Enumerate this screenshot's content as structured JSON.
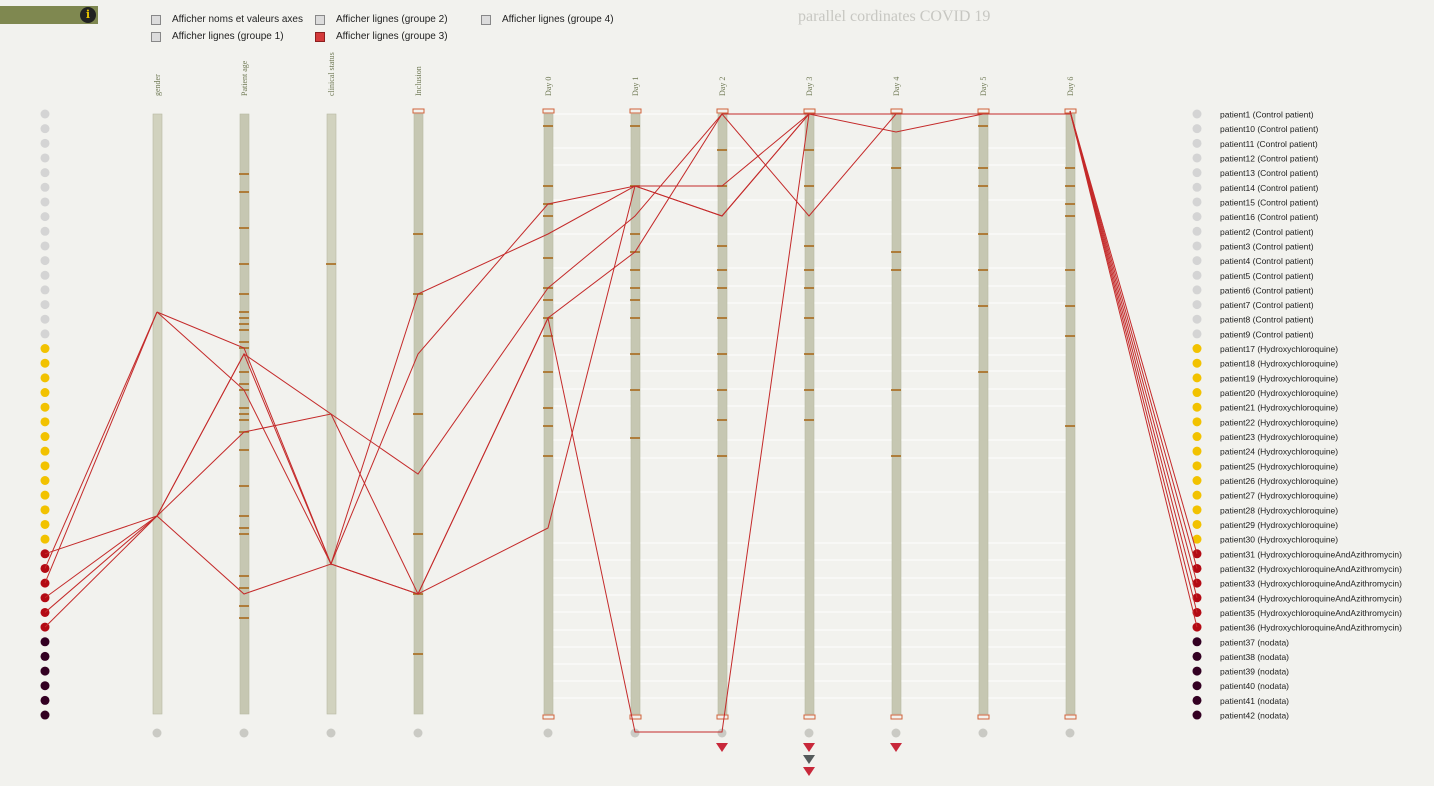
{
  "toolbar": {
    "info_label": "i"
  },
  "controls": [
    {
      "label": "Afficher noms et valeurs axes",
      "checked": false
    },
    {
      "label": "Afficher lignes (groupe 1)",
      "checked": false
    },
    {
      "label": "Afficher lignes (groupe 2)",
      "checked": false
    },
    {
      "label": "Afficher lignes (groupe 3)",
      "checked": true
    },
    {
      "label": "Afficher lignes (groupe 4)",
      "checked": false
    }
  ],
  "colors": {
    "control": "#d4d4d4",
    "hydroxy": "#f2c200",
    "azithro": "#b30a14",
    "nodata": "#330022",
    "line": "#c42a2a",
    "axis": "#c6c7b2",
    "tick": "#a86a1c",
    "warning": "#c8283a",
    "grey_marker": "#555b5b"
  },
  "chart_data": {
    "type": "parallel_coordinates",
    "title": "parallel cordinates COVID 19",
    "axes": [
      "gender",
      "Patient age",
      "clinical status",
      "Inclusion",
      "Day 0",
      "Day 1",
      "Day 2",
      "Day 3",
      "Day 4",
      "Day 5",
      "Day 6"
    ],
    "axis_tick_positions": [
      [],
      [
        0.1,
        0.13,
        0.19,
        0.25,
        0.3,
        0.33,
        0.34,
        0.35,
        0.36,
        0.38,
        0.39,
        0.43,
        0.45,
        0.46,
        0.49,
        0.5,
        0.51,
        0.53,
        0.56,
        0.62,
        0.67,
        0.69,
        0.7,
        0.77,
        0.79,
        0.82,
        0.84
      ],
      [
        0.25
      ],
      [
        0.2,
        0.3,
        0.5,
        0.7,
        0.8,
        0.9
      ],
      [
        0.02,
        0.12,
        0.15,
        0.17,
        0.24,
        0.29,
        0.31,
        0.34,
        0.37,
        0.43,
        0.49,
        0.52,
        0.57
      ],
      [
        0.02,
        0.12,
        0.2,
        0.23,
        0.26,
        0.29,
        0.31,
        0.34,
        0.4,
        0.46,
        0.54
      ],
      [
        0.06,
        0.12,
        0.22,
        0.26,
        0.29,
        0.34,
        0.4,
        0.46,
        0.51,
        0.57
      ],
      [
        0.06,
        0.12,
        0.22,
        0.26,
        0.29,
        0.34,
        0.4,
        0.46,
        0.51
      ],
      [
        0.09,
        0.23,
        0.26,
        0.46,
        0.57
      ],
      [
        0.02,
        0.09,
        0.12,
        0.2,
        0.26,
        0.32,
        0.43
      ],
      [
        0.09,
        0.12,
        0.15,
        0.17,
        0.26,
        0.32,
        0.37,
        0.52
      ]
    ],
    "lines": [
      [
        0.67,
        0.8,
        0.75,
        0.8,
        0.34,
        0.23,
        0.0,
        0.0,
        0.0,
        0.0,
        0.0
      ],
      [
        0.33,
        0.46,
        0.75,
        0.8,
        0.69,
        0.12,
        0.12,
        0.0,
        0.03,
        0.0,
        0.0
      ],
      [
        0.33,
        0.39,
        0.75,
        0.4,
        0.15,
        0.12,
        0.17,
        0.0,
        0.0,
        0.0,
        0.0
      ],
      [
        0.67,
        0.53,
        0.5,
        0.6,
        0.29,
        0.17,
        0.0,
        0.17,
        0.0,
        0.0,
        0.0
      ],
      [
        0.67,
        0.4,
        0.75,
        0.3,
        0.2,
        0.12,
        0.17,
        0.0,
        0.0,
        0.0,
        0.0
      ],
      [
        0.67,
        0.4,
        0.5,
        0.8,
        0.34,
        1.03,
        1.03,
        0.0,
        0.0,
        0.0,
        0.0
      ]
    ],
    "patients": [
      {
        "label": "patient1 (Control patient)",
        "group": "control"
      },
      {
        "label": "patient10 (Control patient)",
        "group": "control"
      },
      {
        "label": "patient11 (Control patient)",
        "group": "control"
      },
      {
        "label": "patient12 (Control patient)",
        "group": "control"
      },
      {
        "label": "patient13 (Control patient)",
        "group": "control"
      },
      {
        "label": "patient14 (Control patient)",
        "group": "control"
      },
      {
        "label": "patient15 (Control patient)",
        "group": "control"
      },
      {
        "label": "patient16 (Control patient)",
        "group": "control"
      },
      {
        "label": "patient2 (Control patient)",
        "group": "control"
      },
      {
        "label": "patient3 (Control patient)",
        "group": "control"
      },
      {
        "label": "patient4 (Control patient)",
        "group": "control"
      },
      {
        "label": "patient5 (Control patient)",
        "group": "control"
      },
      {
        "label": "patient6 (Control patient)",
        "group": "control"
      },
      {
        "label": "patient7 (Control patient)",
        "group": "control"
      },
      {
        "label": "patient8 (Control patient)",
        "group": "control"
      },
      {
        "label": "patient9 (Control patient)",
        "group": "control"
      },
      {
        "label": "patient17 (Hydroxychloroquine)",
        "group": "hydroxy"
      },
      {
        "label": "patient18 (Hydroxychloroquine)",
        "group": "hydroxy"
      },
      {
        "label": "patient19 (Hydroxychloroquine)",
        "group": "hydroxy"
      },
      {
        "label": "patient20 (Hydroxychloroquine)",
        "group": "hydroxy"
      },
      {
        "label": "patient21 (Hydroxychloroquine)",
        "group": "hydroxy"
      },
      {
        "label": "patient22 (Hydroxychloroquine)",
        "group": "hydroxy"
      },
      {
        "label": "patient23 (Hydroxychloroquine)",
        "group": "hydroxy"
      },
      {
        "label": "patient24 (Hydroxychloroquine)",
        "group": "hydroxy"
      },
      {
        "label": "patient25 (Hydroxychloroquine)",
        "group": "hydroxy"
      },
      {
        "label": "patient26 (Hydroxychloroquine)",
        "group": "hydroxy"
      },
      {
        "label": "patient27 (Hydroxychloroquine)",
        "group": "hydroxy"
      },
      {
        "label": "patient28 (Hydroxychloroquine)",
        "group": "hydroxy"
      },
      {
        "label": "patient29 (Hydroxychloroquine)",
        "group": "hydroxy"
      },
      {
        "label": "patient30 (Hydroxychloroquine)",
        "group": "hydroxy"
      },
      {
        "label": "patient31 (HydroxychloroquineAndAzithromycin)",
        "group": "azithro"
      },
      {
        "label": "patient32 (HydroxychloroquineAndAzithromycin)",
        "group": "azithro"
      },
      {
        "label": "patient33 (HydroxychloroquineAndAzithromycin)",
        "group": "azithro"
      },
      {
        "label": "patient34 (HydroxychloroquineAndAzithromycin)",
        "group": "azithro"
      },
      {
        "label": "patient35 (HydroxychloroquineAndAzithromycin)",
        "group": "azithro"
      },
      {
        "label": "patient36 (HydroxychloroquineAndAzithromycin)",
        "group": "azithro"
      },
      {
        "label": "patient37 (nodata)",
        "group": "nodata"
      },
      {
        "label": "patient38 (nodata)",
        "group": "nodata"
      },
      {
        "label": "patient39 (nodata)",
        "group": "nodata"
      },
      {
        "label": "patient40 (nodata)",
        "group": "nodata"
      },
      {
        "label": "patient41 (nodata)",
        "group": "nodata"
      },
      {
        "label": "patient42 (nodata)",
        "group": "nodata"
      }
    ],
    "bottom_markers": [
      [],
      [],
      [],
      [],
      [],
      [],
      [
        "warning"
      ],
      [
        "warning",
        "grey",
        "warning"
      ],
      [
        "warning"
      ],
      [],
      []
    ]
  }
}
